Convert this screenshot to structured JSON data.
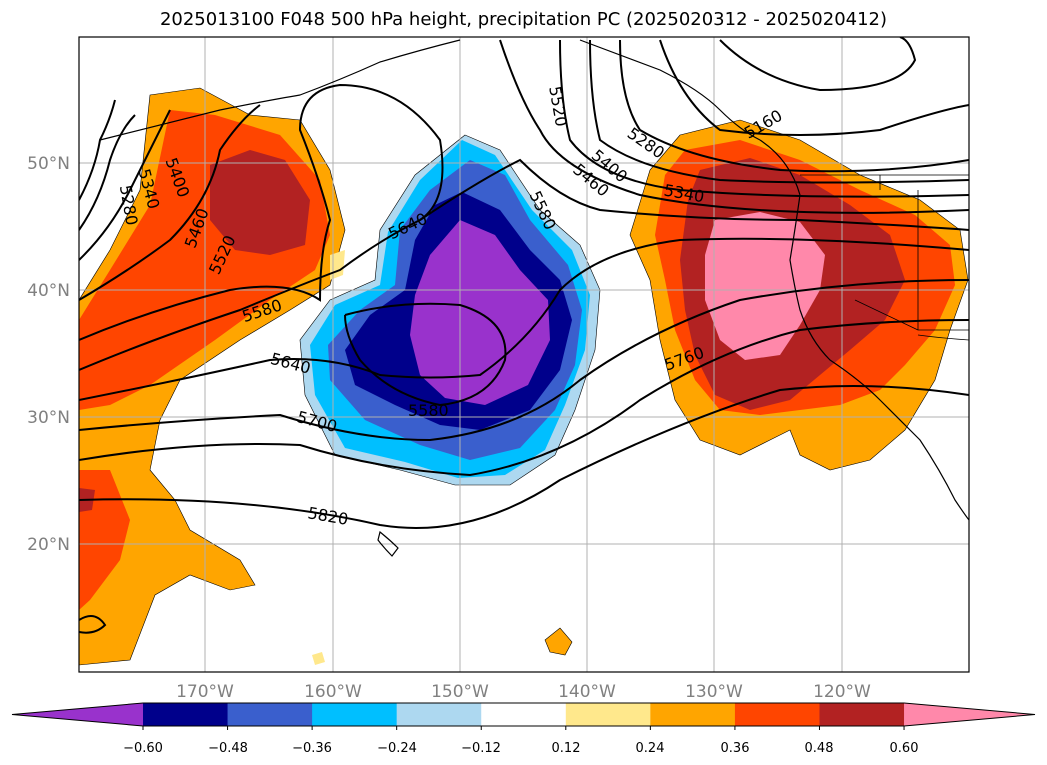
{
  "title": "2025013100 F048 500 hPa height, precipitation PC (2025020312 - 2025020412)",
  "map": {
    "lat_labels": [
      "50°N",
      "40°N",
      "30°N",
      "20°N"
    ],
    "lon_labels": [
      "170°W",
      "160°W",
      "150°W",
      "140°W",
      "130°W",
      "120°W"
    ],
    "height_contour_labels": [
      "5280",
      "5340",
      "5400",
      "5460",
      "5520",
      "5580",
      "5640",
      "5700",
      "5760",
      "5820",
      "5520",
      "5580",
      "5640",
      "5580",
      "5400",
      "5460",
      "5280",
      "5340",
      "5160"
    ]
  },
  "colorbar": {
    "ticks": [
      "−0.60",
      "−0.48",
      "−0.36",
      "−0.24",
      "−0.12",
      "0.12",
      "0.24",
      "0.36",
      "0.48",
      "0.60"
    ],
    "colors": [
      "#9932cc",
      "#00008b",
      "#3a5fcd",
      "#00bfff",
      "#add8f0",
      "#ffffff",
      "#ffe88c",
      "#ffa500",
      "#ff4500",
      "#b22222",
      "#ff88aa"
    ]
  }
}
